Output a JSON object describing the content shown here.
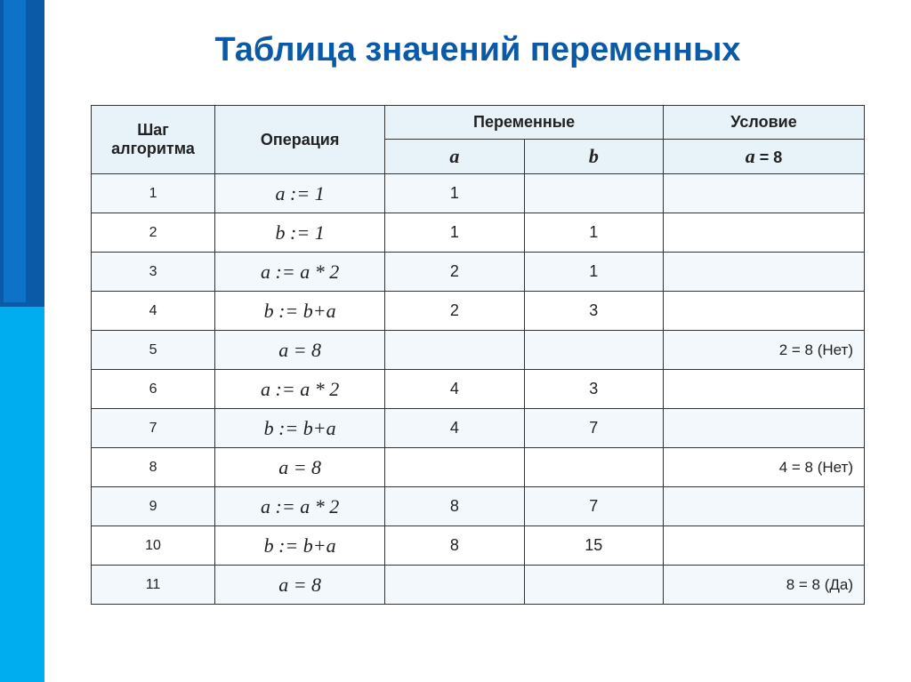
{
  "title": "Таблица значений переменных",
  "colors": {
    "title": "#0b5aa8",
    "header_bg": "#e8f2f9",
    "row_odd_bg": "#f2f8fc",
    "row_even_bg": "#ffffff",
    "border": "#333333",
    "sidebar_top": "#0b5aa8",
    "sidebar_bottom": "#00aeef"
  },
  "table": {
    "headers": {
      "step": "Шаг алгоритма",
      "operation": "Операция",
      "variables": "Переменные",
      "condition": "Условие",
      "sub_a": "a",
      "sub_b": "b",
      "sub_cond": "a = 8"
    },
    "rows": [
      {
        "step": "1",
        "op": "a := 1",
        "a": "1",
        "b": "",
        "cond": ""
      },
      {
        "step": "2",
        "op": "b := 1",
        "a": "1",
        "b": "1",
        "cond": ""
      },
      {
        "step": "3",
        "op": "a := a * 2",
        "a": "2",
        "b": "1",
        "cond": ""
      },
      {
        "step": "4",
        "op": "b := b+a",
        "a": "2",
        "b": "3",
        "cond": ""
      },
      {
        "step": "5",
        "op": "a = 8",
        "a": "",
        "b": "",
        "cond": "2 = 8 (Нет)"
      },
      {
        "step": "6",
        "op": "a := a * 2",
        "a": "4",
        "b": "3",
        "cond": ""
      },
      {
        "step": "7",
        "op": "b := b+a",
        "a": "4",
        "b": "7",
        "cond": ""
      },
      {
        "step": "8",
        "op": "a = 8",
        "a": "",
        "b": "",
        "cond": "4 = 8 (Нет)"
      },
      {
        "step": "9",
        "op": "a := a * 2",
        "a": "8",
        "b": "7",
        "cond": ""
      },
      {
        "step": "10",
        "op": "b := b+a",
        "a": "8",
        "b": "15",
        "cond": ""
      },
      {
        "step": "11",
        "op": "a = 8",
        "a": "",
        "b": "",
        "cond": "8 = 8 (Да)"
      }
    ]
  }
}
